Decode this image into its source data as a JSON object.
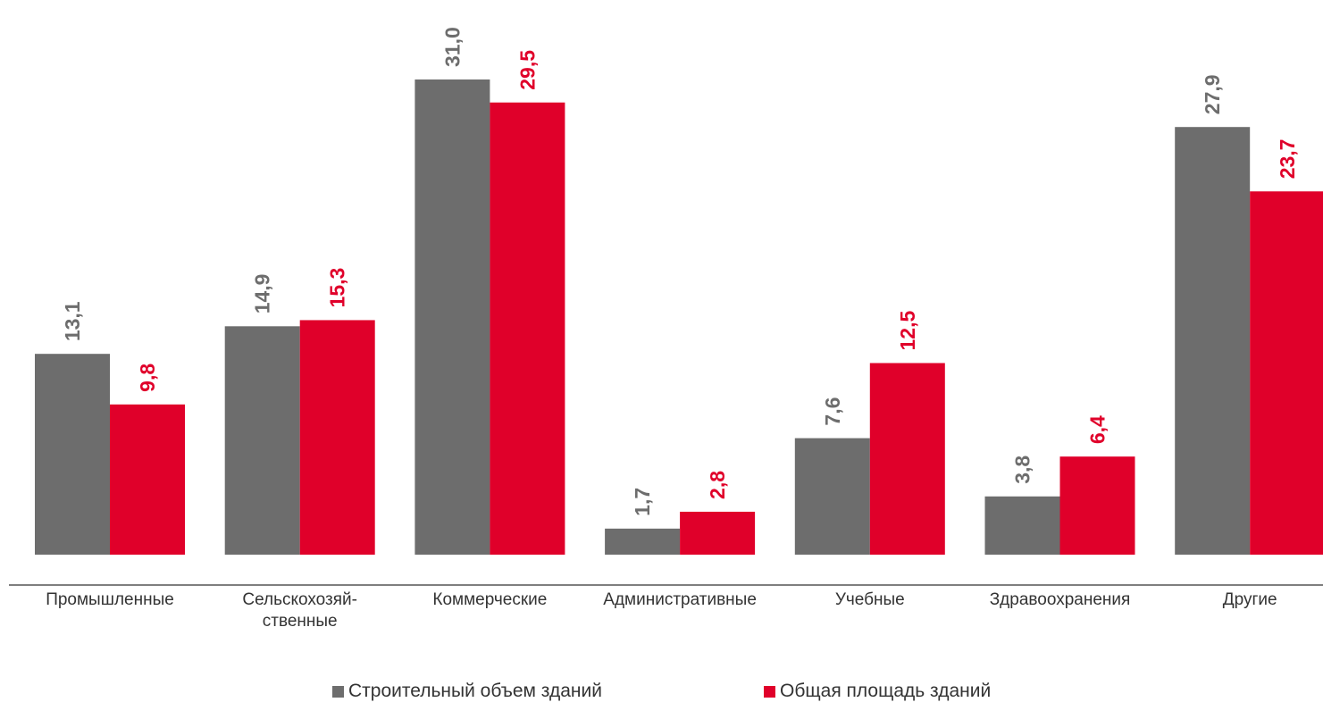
{
  "chart_data": {
    "type": "bar",
    "categories": [
      "Промышленные",
      "Сельскохозяй-\nственные",
      "Коммерческие",
      "Административные",
      "Учебные",
      "Здравоохранения",
      "Другие"
    ],
    "series": [
      {
        "name": "Строительный объем зданий",
        "color": "#6d6d6d",
        "values": [
          13.1,
          14.9,
          31.0,
          1.7,
          7.6,
          3.8,
          27.9
        ],
        "value_labels": [
          "13,1",
          "14,9",
          "31,0",
          "1,7",
          "7,6",
          "3,8",
          "27,9"
        ]
      },
      {
        "name": "Общая площадь зданий",
        "color": "#e0002a",
        "values": [
          9.8,
          15.3,
          29.5,
          2.8,
          12.5,
          6.4,
          23.7
        ],
        "value_labels": [
          "9,8",
          "15,3",
          "29,5",
          "2,8",
          "12,5",
          "6,4",
          "23,7"
        ]
      }
    ],
    "legend": "bottom"
  }
}
